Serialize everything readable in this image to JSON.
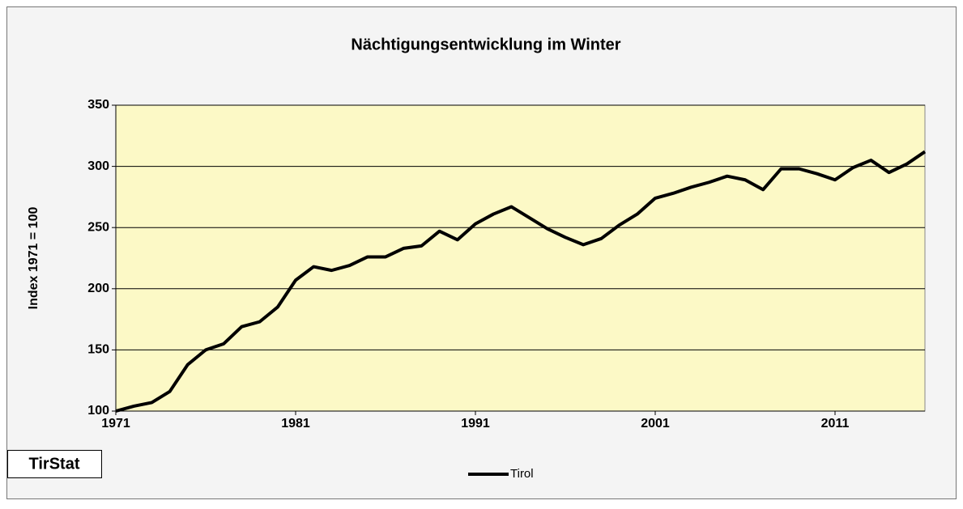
{
  "chart_data": {
    "type": "line",
    "title": "Nächtigungsentwicklung im Winter",
    "y_label": "Index 1971 = 100",
    "logo": "TirStat",
    "x": [
      1971,
      1972,
      1973,
      1974,
      1975,
      1976,
      1977,
      1978,
      1979,
      1980,
      1981,
      1982,
      1983,
      1984,
      1985,
      1986,
      1987,
      1988,
      1989,
      1990,
      1991,
      1992,
      1993,
      1994,
      1995,
      1996,
      1997,
      1998,
      1999,
      2000,
      2001,
      2002,
      2003,
      2004,
      2005,
      2006,
      2007,
      2008,
      2009,
      2010,
      2011,
      2012,
      2013,
      2014,
      2015,
      2016
    ],
    "series": [
      {
        "name": "Tirol",
        "color": "#000000",
        "values": [
          100,
          104,
          107,
          116,
          138,
          150,
          155,
          169,
          173,
          185,
          207,
          218,
          215,
          219,
          226,
          226,
          233,
          235,
          247,
          240,
          253,
          261,
          267,
          258,
          249,
          242,
          236,
          241,
          252,
          261,
          274,
          278,
          283,
          287,
          292,
          289,
          281,
          298,
          298,
          294,
          289,
          299,
          305,
          295,
          302,
          312
        ]
      }
    ],
    "xlim": [
      1971,
      2016
    ],
    "xticks": [
      1971,
      1981,
      1991,
      2001,
      2011
    ],
    "ylim": [
      100,
      350
    ],
    "yticks": [
      100,
      150,
      200,
      250,
      300,
      350
    ],
    "grid": true,
    "legend": "bottom"
  }
}
